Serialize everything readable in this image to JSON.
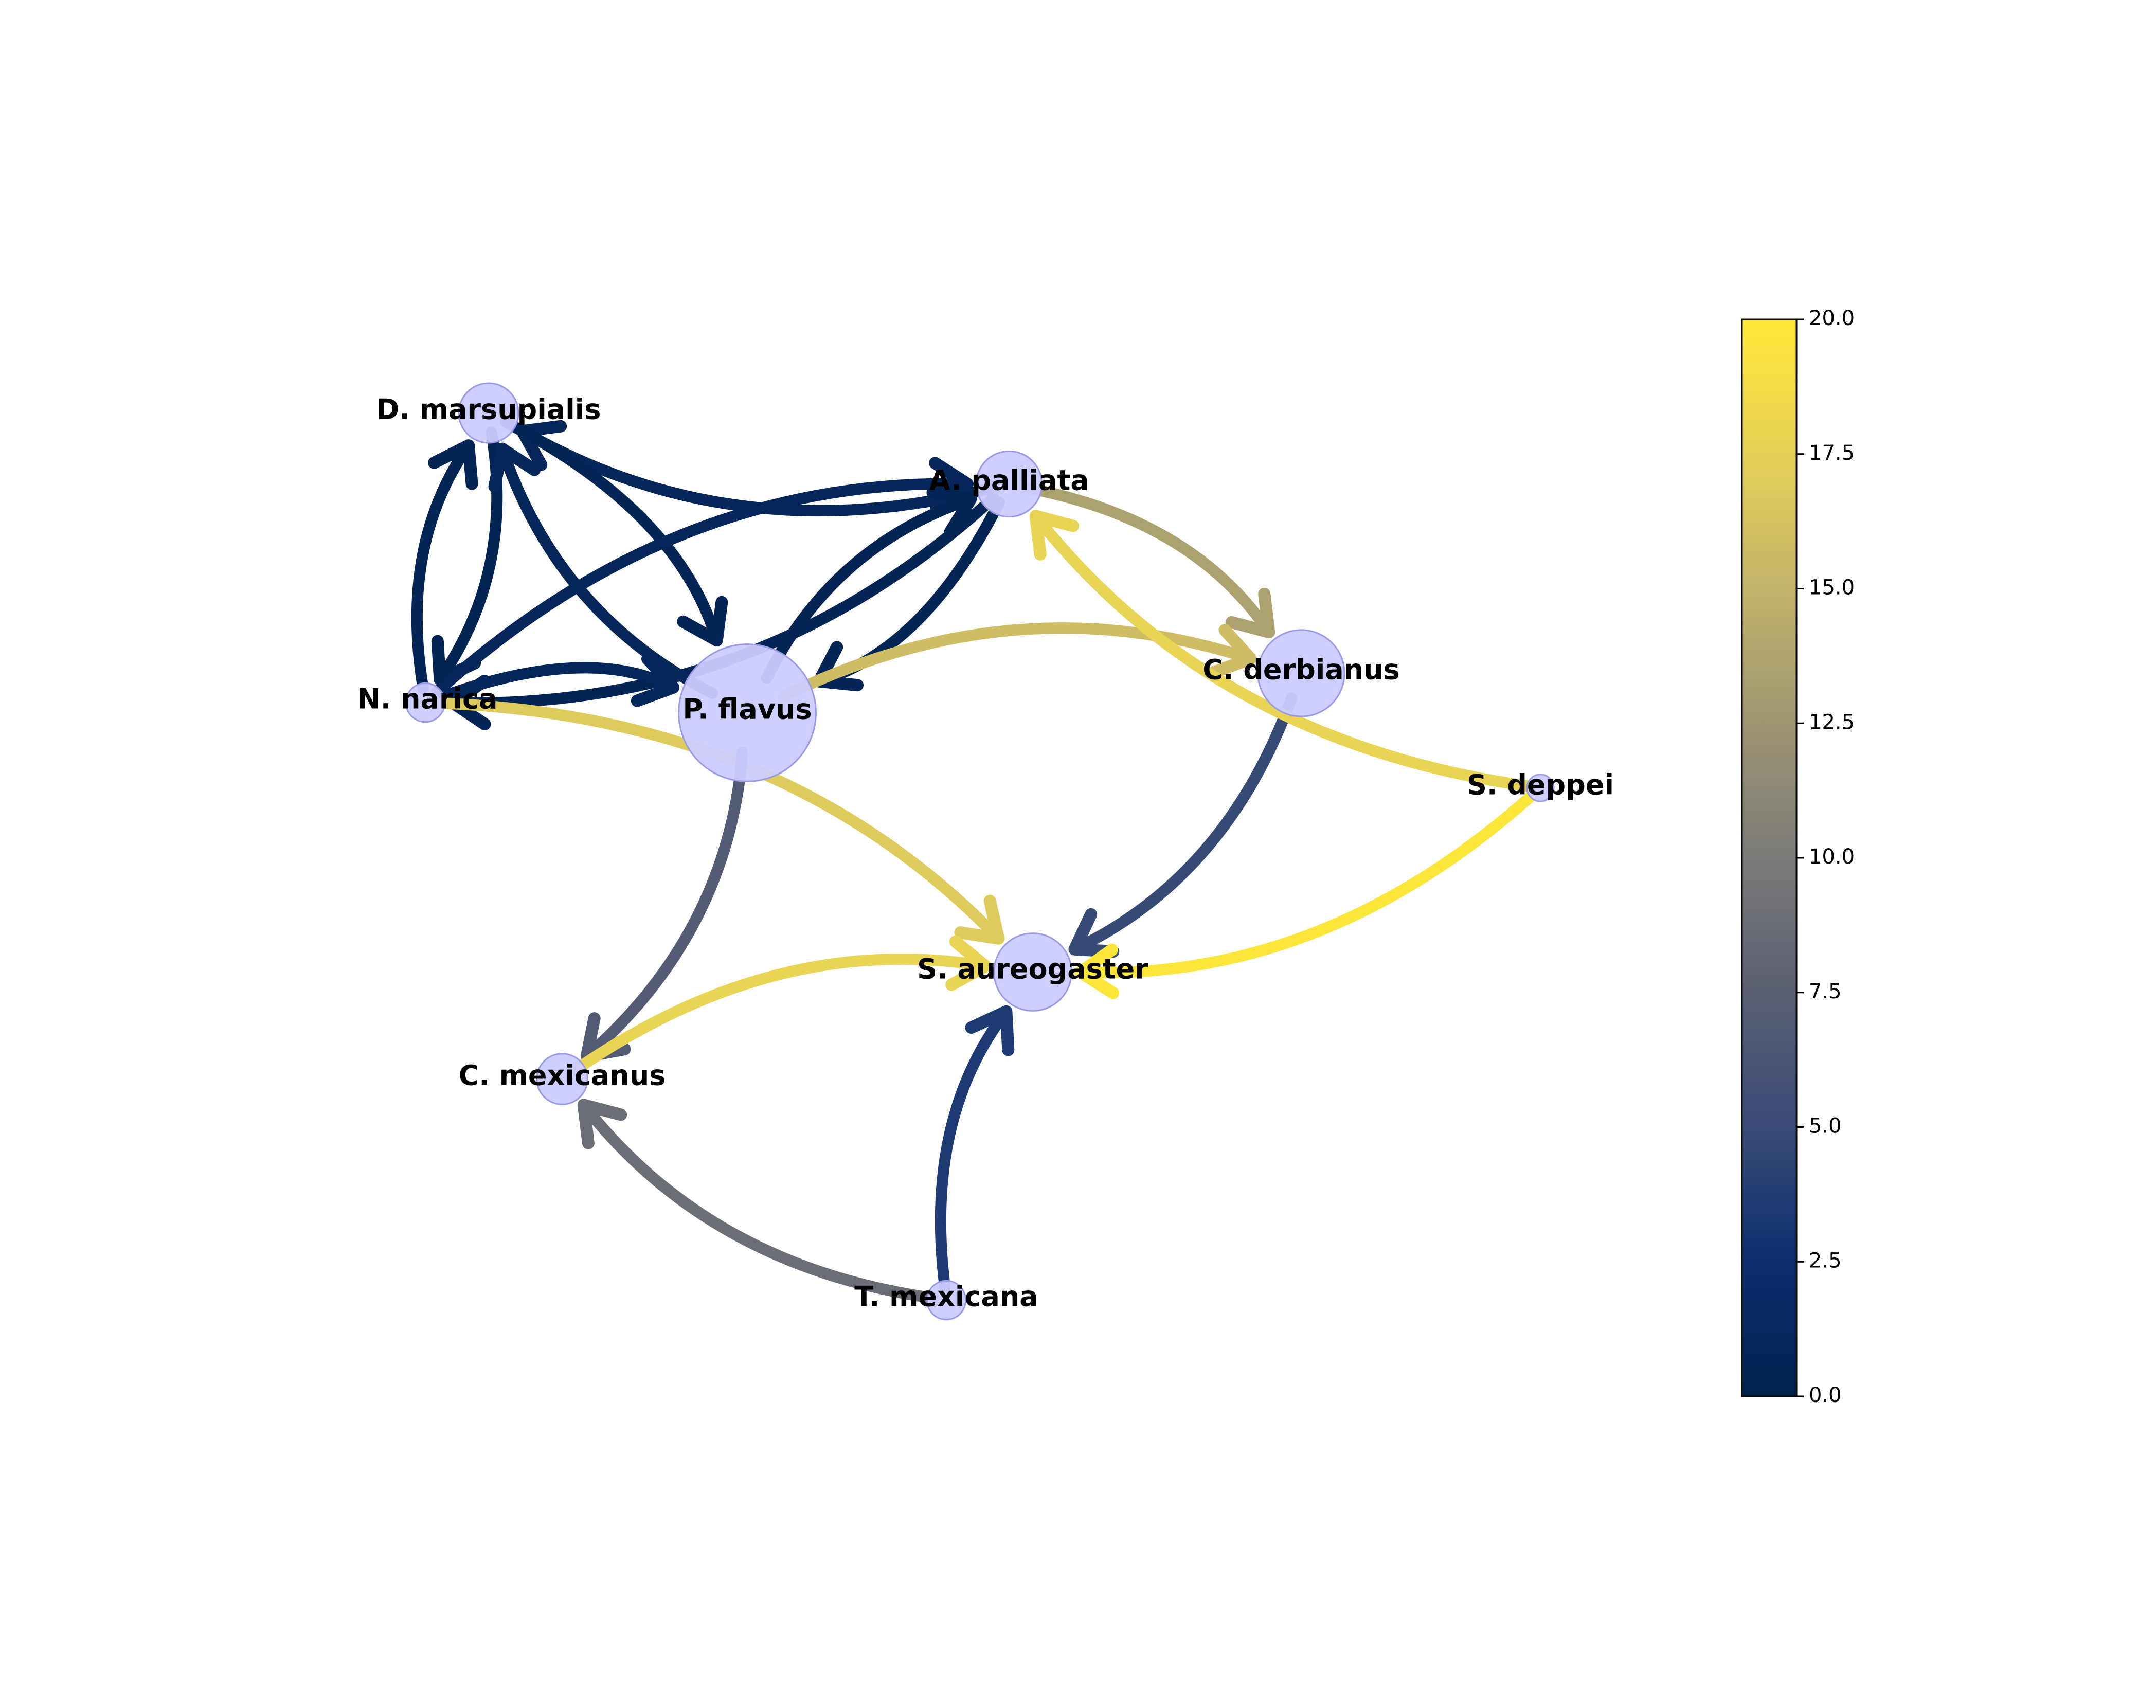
{
  "network": {
    "nodes": [
      {
        "id": "dmar",
        "label": "D. marsupialis",
        "size": 1.0
      },
      {
        "id": "apal",
        "label": "A. palliata",
        "size": 1.1
      },
      {
        "id": "nnar",
        "label": "N. narica",
        "size": 0.65
      },
      {
        "id": "pfla",
        "label": "P. flavus",
        "size": 2.3
      },
      {
        "id": "cder",
        "label": "C. derbianus",
        "size": 1.45
      },
      {
        "id": "sdep",
        "label": "S. deppei",
        "size": 0.45
      },
      {
        "id": "saur",
        "label": "S. aureogaster",
        "size": 1.3
      },
      {
        "id": "cmex",
        "label": "C. mexicanus",
        "size": 0.85
      },
      {
        "id": "tmex",
        "label": "T. mexicana",
        "size": 0.65
      }
    ],
    "edges": [
      {
        "source": "apal",
        "target": "dmar",
        "value": 0.8
      },
      {
        "source": "apal",
        "target": "nnar",
        "value": 0.6
      },
      {
        "source": "apal",
        "target": "pfla",
        "value": 0.6
      },
      {
        "source": "apal",
        "target": "cder",
        "value": 13.5
      },
      {
        "source": "dmar",
        "target": "nnar",
        "value": 0.4
      },
      {
        "source": "dmar",
        "target": "pfla",
        "value": 0.6
      },
      {
        "source": "nnar",
        "target": "dmar",
        "value": 0.6
      },
      {
        "source": "nnar",
        "target": "apal",
        "value": 0.9
      },
      {
        "source": "nnar",
        "target": "pfla",
        "value": 1.0
      },
      {
        "source": "nnar",
        "target": "saur",
        "value": 17.0
      },
      {
        "source": "pfla",
        "target": "dmar",
        "value": 0.8
      },
      {
        "source": "pfla",
        "target": "apal",
        "value": 0.5
      },
      {
        "source": "pfla",
        "target": "cder",
        "value": 15.8
      },
      {
        "source": "pfla",
        "target": "cmex",
        "value": 7.0
      },
      {
        "source": "cder",
        "target": "saur",
        "value": 4.8
      },
      {
        "source": "sdep",
        "target": "apal",
        "value": 17.8
      },
      {
        "source": "sdep",
        "target": "saur",
        "value": 19.8
      },
      {
        "source": "cmex",
        "target": "saur",
        "value": 17.8
      },
      {
        "source": "tmex",
        "target": "cmex",
        "value": 8.8
      },
      {
        "source": "tmex",
        "target": "saur",
        "value": 3.5
      }
    ]
  },
  "colorbar": {
    "colormap": "cividis",
    "min": 0,
    "max": 20,
    "ticks": [
      "0.0",
      "2.5",
      "5.0",
      "7.5",
      "10.0",
      "12.5",
      "15.0",
      "17.5",
      "20.0"
    ]
  },
  "colors": {
    "node_fill": "#ccccff",
    "node_stroke": "#9a9ae8"
  }
}
